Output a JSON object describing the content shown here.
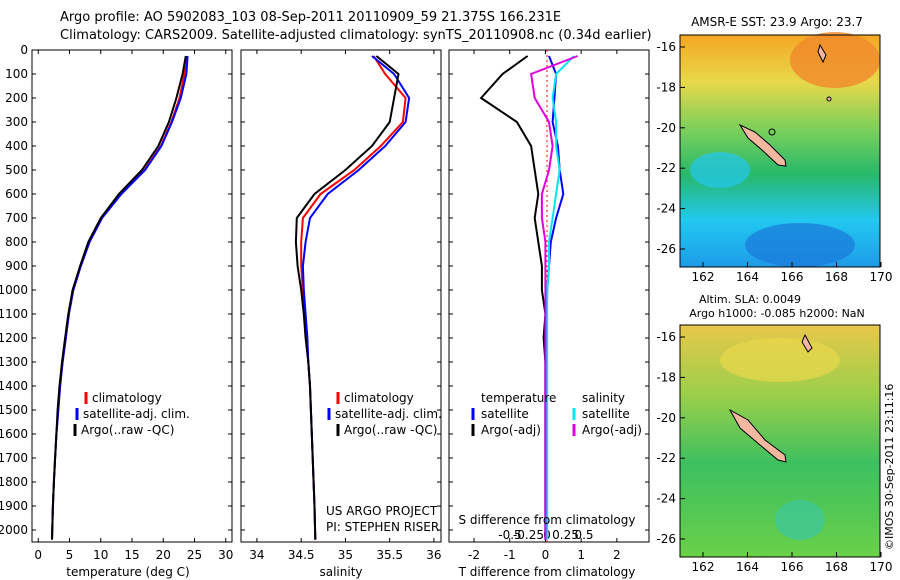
{
  "title_line1": "Argo profile: AO 5902083_103 08-Sep-2011 20110909_59 21.375S 166.231E",
  "title_line2": "Climatology: CARS2009. Satellite-adjusted climatology: synTS_20110908.nc (0.34d earlier)",
  "depth_ticks": [
    "0",
    "100",
    "200",
    "300",
    "400",
    "500",
    "600",
    "700",
    "800",
    "900",
    "1000",
    "1100",
    "1200",
    "1300",
    "1400",
    "1500",
    "1600",
    "1700",
    "1800",
    "1900",
    "2000"
  ],
  "colors": {
    "climatology": "#ff0000",
    "satellite": "#0000ff",
    "argo": "#000000",
    "sal_satellite": "#00e5ee",
    "sal_argo": "#e000e0"
  },
  "panel_temp": {
    "xlabel": "temperature (deg C)",
    "xticks": [
      "0",
      "5",
      "10",
      "15",
      "20",
      "25",
      "30"
    ],
    "legend": [
      "climatology",
      "satellite-adj. clim.",
      "Argo(..raw -QC)"
    ]
  },
  "panel_sal": {
    "xlabel": "salinity",
    "xticks": [
      "34",
      "34.5",
      "35",
      "35.5",
      "36"
    ],
    "legend": [
      "climatology",
      "satellite-adj. clim.",
      "Argo(..raw -QC)"
    ],
    "credit1": "US ARGO PROJECT",
    "credit2": "PI: STEPHEN RISER"
  },
  "panel_diff": {
    "xlabel": "T difference from climatology",
    "top_label": "S difference from climatology",
    "t_ticks": [
      "-2",
      "-1",
      "0",
      "1",
      "2"
    ],
    "s_ticks": [
      "-0.5",
      "-0.25",
      "0",
      "0.25",
      "0.5"
    ],
    "legend_t_title": "temperature",
    "legend_t": [
      "satellite",
      "Argo(-adj)"
    ],
    "legend_s_title": "salinity",
    "legend_s": [
      "satellite",
      "Argo(-adj)"
    ]
  },
  "map_sst": {
    "title": "AMSR-E SST: 23.9 Argo: 23.7"
  },
  "map_sla": {
    "title1": "Altim. SLA: 0.0049",
    "title2": "Argo h1000: -0.085 h2000: NaN"
  },
  "map_ticks": {
    "lat": [
      "-16",
      "-18",
      "-20",
      "-22",
      "-24",
      "-26"
    ],
    "lon": [
      "162",
      "164",
      "166",
      "168",
      "170"
    ]
  },
  "watermark": "©IMOS 30-Sep-2011 23:11:16",
  "chart_data": [
    {
      "type": "line",
      "xlabel": "temperature (deg C)",
      "ylim": [
        0,
        2050
      ],
      "xlim": [
        -1,
        31
      ],
      "series": [
        {
          "name": "climatology",
          "x": [
            23.7,
            23.4,
            22.6,
            21.3,
            19.6,
            17.0,
            13.2,
            10.2,
            8.2,
            6.8,
            5.6,
            4.9,
            4.4,
            3.9,
            3.5,
            3.2,
            2.9,
            2.7,
            2.5,
            2.35,
            2.2
          ],
          "y": [
            25,
            100,
            200,
            300,
            400,
            500,
            600,
            700,
            800,
            900,
            1000,
            1100,
            1200,
            1300,
            1400,
            1500,
            1600,
            1700,
            1800,
            1900,
            2040
          ]
        },
        {
          "name": "satellite-adj. clim.",
          "x": [
            23.9,
            23.7,
            22.8,
            21.4,
            19.7,
            17.1,
            13.3,
            10.2,
            8.2,
            6.8,
            5.6,
            4.9,
            4.4,
            3.9,
            3.5,
            3.2,
            2.9,
            2.7,
            2.5,
            2.35,
            2.2
          ],
          "y": [
            25,
            100,
            200,
            300,
            400,
            500,
            600,
            700,
            800,
            900,
            1000,
            1100,
            1200,
            1300,
            1400,
            1500,
            1600,
            1700,
            1800,
            1900,
            2040
          ]
        },
        {
          "name": "Argo(..raw -QC)",
          "x": [
            23.6,
            23.1,
            22.1,
            20.9,
            19.2,
            16.6,
            12.9,
            10.0,
            8.0,
            6.7,
            5.5,
            4.8,
            4.3,
            3.8,
            3.4,
            3.1,
            2.9,
            2.7,
            2.5,
            2.35,
            2.2
          ],
          "y": [
            25,
            100,
            200,
            300,
            400,
            500,
            600,
            700,
            800,
            900,
            1000,
            1100,
            1200,
            1300,
            1400,
            1500,
            1600,
            1700,
            1800,
            1900,
            2040
          ]
        }
      ]
    },
    {
      "type": "line",
      "xlabel": "salinity",
      "ylim": [
        0,
        2050
      ],
      "xlim": [
        33.82,
        36.08
      ],
      "series": [
        {
          "name": "climatology",
          "x": [
            35.32,
            35.45,
            35.68,
            35.65,
            35.4,
            35.1,
            34.72,
            34.52,
            34.5,
            34.5,
            34.52,
            34.54,
            34.56,
            34.58,
            34.6,
            34.61,
            34.62,
            34.63,
            34.64,
            34.65,
            34.66
          ],
          "y": [
            25,
            100,
            200,
            300,
            400,
            500,
            600,
            700,
            800,
            900,
            1000,
            1100,
            1200,
            1300,
            1400,
            1500,
            1600,
            1700,
            1800,
            1900,
            2040
          ]
        },
        {
          "name": "satellite-adj. clim.",
          "x": [
            35.3,
            35.55,
            35.72,
            35.68,
            35.45,
            35.15,
            34.8,
            34.6,
            34.55,
            34.52,
            34.53,
            34.55,
            34.57,
            34.58,
            34.6,
            34.61,
            34.62,
            34.63,
            34.64,
            34.65,
            34.66
          ],
          "y": [
            25,
            100,
            200,
            300,
            400,
            500,
            600,
            700,
            800,
            900,
            1000,
            1100,
            1200,
            1300,
            1400,
            1500,
            1600,
            1700,
            1800,
            1900,
            2040
          ]
        },
        {
          "name": "Argo(..raw -QC)",
          "x": [
            35.35,
            35.6,
            35.55,
            35.5,
            35.3,
            35.0,
            34.65,
            34.45,
            34.44,
            34.46,
            34.5,
            34.53,
            34.55,
            34.58,
            34.6,
            34.61,
            34.62,
            34.63,
            34.64,
            34.65,
            34.66
          ],
          "y": [
            25,
            100,
            200,
            300,
            400,
            500,
            600,
            700,
            800,
            900,
            1000,
            1100,
            1200,
            1300,
            1400,
            1500,
            1600,
            1700,
            1800,
            1900,
            2040
          ]
        }
      ]
    },
    {
      "type": "line",
      "xlabel": "T difference from climatology",
      "ylim": [
        0,
        2050
      ],
      "xlim": [
        -2.7,
        2.9
      ],
      "series": [
        {
          "name": "temperature satellite",
          "x": [
            0.1,
            0.3,
            0.25,
            0.2,
            0.35,
            0.4,
            0.5,
            0.3,
            0.15,
            0.1,
            0.05,
            0.02,
            0,
            0,
            0,
            0,
            0,
            0,
            0,
            0,
            0
          ],
          "y": [
            25,
            100,
            200,
            300,
            400,
            500,
            600,
            700,
            800,
            900,
            1000,
            1100,
            1200,
            1300,
            1400,
            1500,
            1600,
            1700,
            1800,
            1900,
            2040
          ]
        },
        {
          "name": "temperature Argo(-adj)",
          "x": [
            -0.5,
            -1.2,
            -1.8,
            -0.8,
            -0.4,
            -0.3,
            -0.2,
            -0.3,
            -0.2,
            -0.1,
            -0.1,
            0,
            -0.05,
            0,
            0,
            0,
            0,
            0,
            0,
            0,
            0
          ],
          "y": [
            25,
            100,
            200,
            300,
            400,
            500,
            600,
            700,
            800,
            900,
            1000,
            1100,
            1200,
            1300,
            1400,
            1500,
            1600,
            1700,
            1800,
            1900,
            2040
          ]
        },
        {
          "name": "salinity satellite",
          "x": [
            0.8,
            0.3,
            0.2,
            0.3,
            0.3,
            0.4,
            0.3,
            0.2,
            0.1,
            0.1,
            0.05,
            0.05,
            0.05,
            0.05,
            0.05,
            0.05,
            0.05,
            0.05,
            0.05,
            0.05,
            0.05
          ],
          "y": [
            25,
            100,
            200,
            300,
            400,
            500,
            600,
            700,
            800,
            900,
            1000,
            1100,
            1200,
            1300,
            1400,
            1500,
            1600,
            1700,
            1800,
            1900,
            2040
          ]
        },
        {
          "name": "salinity Argo(-adj)",
          "x": [
            0.9,
            -0.4,
            -0.3,
            0.1,
            0.2,
            0.1,
            -0.1,
            -0.1,
            0,
            0,
            0,
            0,
            0,
            0,
            0,
            0,
            0,
            0,
            0,
            0,
            0
          ],
          "y": [
            25,
            100,
            200,
            300,
            400,
            500,
            600,
            700,
            800,
            900,
            1000,
            1100,
            1200,
            1300,
            1400,
            1500,
            1600,
            1700,
            1800,
            1900,
            2040
          ]
        }
      ]
    }
  ]
}
